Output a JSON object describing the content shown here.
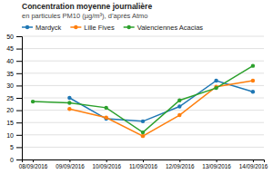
{
  "chart_data": {
    "type": "line",
    "title": "Concentration moyenne journalière",
    "subtitle": "en particules PM10 (µg/m³), d’après Atmo",
    "categories": [
      "08/09/2016",
      "09/09/2016",
      "10/09/2016",
      "11/09/2016",
      "12/09/2016",
      "13/09/2016",
      "14/09/2016"
    ],
    "series": [
      {
        "name": "Mardyck",
        "values": [
          null,
          25,
          16.5,
          15.5,
          21.5,
          32,
          27.5
        ]
      },
      {
        "name": "Lille Fives",
        "values": [
          null,
          20.5,
          17,
          9.5,
          18,
          29.5,
          32
        ]
      },
      {
        "name": "Valenciennes Acacias",
        "values": [
          23.5,
          23,
          21,
          11,
          24,
          29,
          38
        ]
      }
    ],
    "ylim": [
      0,
      50
    ],
    "yticks": [
      0,
      5,
      10,
      15,
      20,
      25,
      30,
      35,
      40,
      45,
      50
    ],
    "grid": true,
    "legend": "top",
    "marker": "circle"
  }
}
